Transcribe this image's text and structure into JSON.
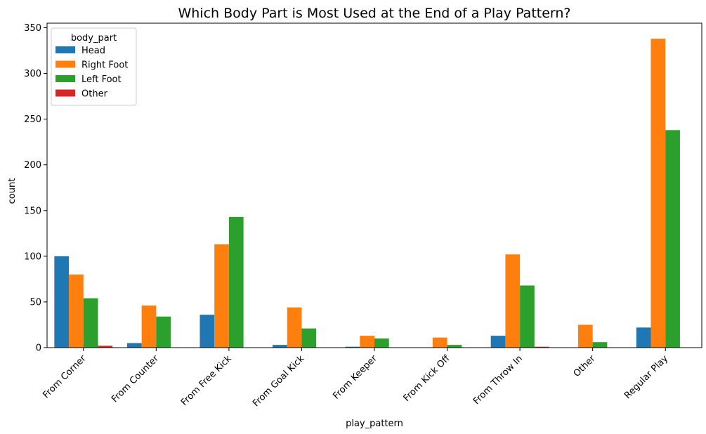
{
  "chart_data": {
    "type": "bar",
    "title": "Which Body Part is Most Used at the End of a Play Pattern?",
    "xlabel": "play_pattern",
    "ylabel": "count",
    "ylim": [
      0,
      355
    ],
    "yticks": [
      0,
      50,
      100,
      150,
      200,
      250,
      300,
      350
    ],
    "categories": [
      "From Corner",
      "From Counter",
      "From Free Kick",
      "From Goal Kick",
      "From Keeper",
      "From Kick Off",
      "From Throw In",
      "Other",
      "Regular Play"
    ],
    "legend": {
      "title": "body_part",
      "placement": "top-left"
    },
    "series": [
      {
        "name": "Head",
        "color": "#1f77b4",
        "values": [
          100,
          5,
          36,
          3,
          1,
          0,
          13,
          0,
          22
        ]
      },
      {
        "name": "Right Foot",
        "color": "#ff7f0e",
        "values": [
          80,
          46,
          113,
          44,
          13,
          11,
          102,
          25,
          338
        ]
      },
      {
        "name": "Left Foot",
        "color": "#2ca02c",
        "values": [
          54,
          34,
          143,
          21,
          10,
          3,
          68,
          6,
          238
        ]
      },
      {
        "name": "Other",
        "color": "#d62728",
        "values": [
          2,
          0,
          0,
          0,
          0,
          0,
          1,
          0,
          0
        ]
      }
    ],
    "grid": false
  }
}
